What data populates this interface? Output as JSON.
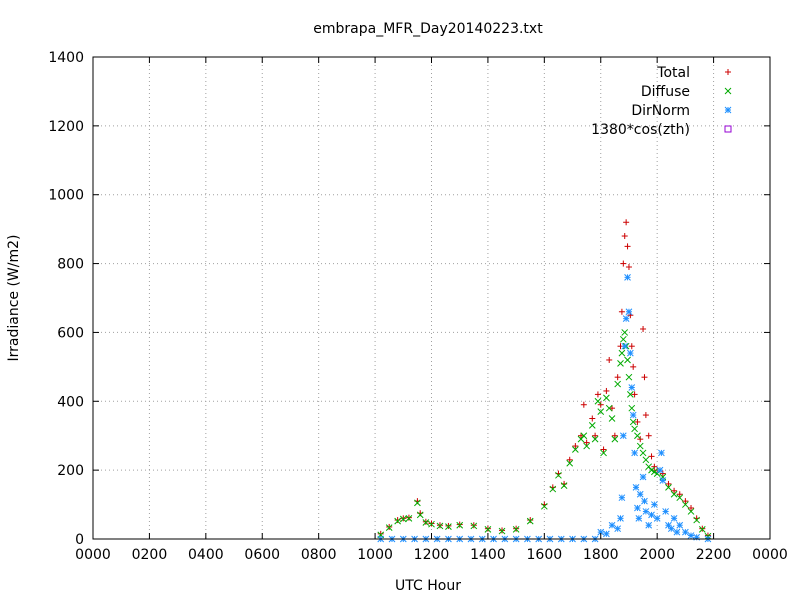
{
  "chart_data": {
    "type": "scatter",
    "title": "embrapa_MFR_Day20140223.txt",
    "xlabel": "UTC Hour",
    "ylabel": "Irradiance (W/m2)",
    "xlim": [
      0,
      24
    ],
    "ylim": [
      0,
      1400
    ],
    "grid": true,
    "legend_position": "top-right",
    "x_ticks": [
      {
        "value": 0,
        "label": "0000"
      },
      {
        "value": 2,
        "label": "0200"
      },
      {
        "value": 4,
        "label": "0400"
      },
      {
        "value": 6,
        "label": "0600"
      },
      {
        "value": 8,
        "label": "0800"
      },
      {
        "value": 10,
        "label": "1000"
      },
      {
        "value": 12,
        "label": "1200"
      },
      {
        "value": 14,
        "label": "1400"
      },
      {
        "value": 16,
        "label": "1600"
      },
      {
        "value": 18,
        "label": "1800"
      },
      {
        "value": 20,
        "label": "2000"
      },
      {
        "value": 22,
        "label": "2200"
      },
      {
        "value": 24,
        "label": "0000"
      }
    ],
    "y_ticks": [
      {
        "value": 0,
        "label": "0"
      },
      {
        "value": 200,
        "label": "200"
      },
      {
        "value": 400,
        "label": "400"
      },
      {
        "value": 600,
        "label": "600"
      },
      {
        "value": 800,
        "label": "800"
      },
      {
        "value": 1000,
        "label": "1000"
      },
      {
        "value": 1200,
        "label": "1200"
      },
      {
        "value": 1400,
        "label": "1400"
      }
    ],
    "series": [
      {
        "name": "Total",
        "marker": "plus",
        "color": "#cc0000",
        "points": [
          [
            10.2,
            15
          ],
          [
            10.5,
            35
          ],
          [
            10.8,
            55
          ],
          [
            11.0,
            60
          ],
          [
            11.2,
            62
          ],
          [
            11.5,
            110
          ],
          [
            11.6,
            75
          ],
          [
            11.8,
            50
          ],
          [
            12.0,
            45
          ],
          [
            12.3,
            40
          ],
          [
            12.6,
            38
          ],
          [
            13.0,
            42
          ],
          [
            13.5,
            40
          ],
          [
            14.0,
            30
          ],
          [
            14.5,
            25
          ],
          [
            15.0,
            30
          ],
          [
            15.5,
            55
          ],
          [
            16.0,
            100
          ],
          [
            16.3,
            150
          ],
          [
            16.5,
            190
          ],
          [
            16.7,
            160
          ],
          [
            16.9,
            230
          ],
          [
            17.1,
            270
          ],
          [
            17.3,
            300
          ],
          [
            17.4,
            390
          ],
          [
            17.5,
            280
          ],
          [
            17.7,
            350
          ],
          [
            17.8,
            300
          ],
          [
            17.9,
            420
          ],
          [
            18.0,
            390
          ],
          [
            18.1,
            260
          ],
          [
            18.2,
            430
          ],
          [
            18.3,
            520
          ],
          [
            18.4,
            380
          ],
          [
            18.5,
            300
          ],
          [
            18.6,
            470
          ],
          [
            18.7,
            560
          ],
          [
            18.75,
            660
          ],
          [
            18.8,
            800
          ],
          [
            18.85,
            880
          ],
          [
            18.9,
            920
          ],
          [
            18.95,
            850
          ],
          [
            19.0,
            790
          ],
          [
            19.05,
            650
          ],
          [
            19.1,
            560
          ],
          [
            19.15,
            500
          ],
          [
            19.2,
            420
          ],
          [
            19.3,
            340
          ],
          [
            19.4,
            290
          ],
          [
            19.5,
            610
          ],
          [
            19.55,
            470
          ],
          [
            19.6,
            360
          ],
          [
            19.7,
            300
          ],
          [
            19.8,
            240
          ],
          [
            19.9,
            210
          ],
          [
            20.0,
            200
          ],
          [
            20.2,
            190
          ],
          [
            20.4,
            160
          ],
          [
            20.6,
            140
          ],
          [
            20.8,
            130
          ],
          [
            21.0,
            110
          ],
          [
            21.2,
            90
          ],
          [
            21.4,
            60
          ],
          [
            21.6,
            30
          ],
          [
            21.8,
            10
          ]
        ]
      },
      {
        "name": "Diffuse",
        "marker": "cross",
        "color": "#00aa00",
        "points": [
          [
            10.2,
            12
          ],
          [
            10.5,
            33
          ],
          [
            10.8,
            52
          ],
          [
            11.0,
            58
          ],
          [
            11.2,
            60
          ],
          [
            11.5,
            105
          ],
          [
            11.6,
            70
          ],
          [
            11.8,
            48
          ],
          [
            12.0,
            43
          ],
          [
            12.3,
            38
          ],
          [
            12.6,
            36
          ],
          [
            13.0,
            40
          ],
          [
            13.5,
            38
          ],
          [
            14.0,
            28
          ],
          [
            14.5,
            23
          ],
          [
            15.0,
            28
          ],
          [
            15.5,
            52
          ],
          [
            16.0,
            95
          ],
          [
            16.3,
            145
          ],
          [
            16.5,
            185
          ],
          [
            16.7,
            155
          ],
          [
            16.9,
            220
          ],
          [
            17.1,
            260
          ],
          [
            17.3,
            290
          ],
          [
            17.4,
            300
          ],
          [
            17.5,
            270
          ],
          [
            17.7,
            330
          ],
          [
            17.8,
            290
          ],
          [
            17.9,
            400
          ],
          [
            18.0,
            370
          ],
          [
            18.1,
            250
          ],
          [
            18.2,
            410
          ],
          [
            18.3,
            380
          ],
          [
            18.4,
            350
          ],
          [
            18.5,
            290
          ],
          [
            18.6,
            450
          ],
          [
            18.7,
            510
          ],
          [
            18.75,
            540
          ],
          [
            18.8,
            580
          ],
          [
            18.85,
            600
          ],
          [
            18.9,
            560
          ],
          [
            18.95,
            520
          ],
          [
            19.0,
            470
          ],
          [
            19.05,
            420
          ],
          [
            19.1,
            380
          ],
          [
            19.15,
            340
          ],
          [
            19.2,
            320
          ],
          [
            19.3,
            300
          ],
          [
            19.4,
            270
          ],
          [
            19.5,
            250
          ],
          [
            19.6,
            230
          ],
          [
            19.7,
            210
          ],
          [
            19.8,
            200
          ],
          [
            19.9,
            195
          ],
          [
            20.0,
            190
          ],
          [
            20.2,
            180
          ],
          [
            20.4,
            150
          ],
          [
            20.6,
            130
          ],
          [
            20.8,
            120
          ],
          [
            21.0,
            100
          ],
          [
            21.2,
            80
          ],
          [
            21.4,
            55
          ],
          [
            21.6,
            28
          ],
          [
            21.8,
            8
          ]
        ]
      },
      {
        "name": "DirNorm",
        "marker": "star",
        "color": "#1e8fff",
        "points": [
          [
            10.2,
            0
          ],
          [
            10.6,
            0
          ],
          [
            11.0,
            0
          ],
          [
            11.4,
            0
          ],
          [
            11.8,
            0
          ],
          [
            12.2,
            0
          ],
          [
            12.6,
            0
          ],
          [
            13.0,
            0
          ],
          [
            13.4,
            0
          ],
          [
            13.8,
            0
          ],
          [
            14.2,
            0
          ],
          [
            14.6,
            0
          ],
          [
            15.0,
            0
          ],
          [
            15.4,
            0
          ],
          [
            15.8,
            0
          ],
          [
            16.2,
            0
          ],
          [
            16.6,
            0
          ],
          [
            17.0,
            0
          ],
          [
            17.4,
            0
          ],
          [
            17.8,
            0
          ],
          [
            18.0,
            20
          ],
          [
            18.2,
            15
          ],
          [
            18.4,
            40
          ],
          [
            18.6,
            30
          ],
          [
            18.7,
            60
          ],
          [
            18.75,
            120
          ],
          [
            18.8,
            300
          ],
          [
            18.85,
            560
          ],
          [
            18.9,
            640
          ],
          [
            18.95,
            760
          ],
          [
            19.0,
            660
          ],
          [
            19.05,
            540
          ],
          [
            19.1,
            440
          ],
          [
            19.15,
            360
          ],
          [
            19.2,
            250
          ],
          [
            19.25,
            150
          ],
          [
            19.3,
            90
          ],
          [
            19.35,
            60
          ],
          [
            19.4,
            130
          ],
          [
            19.5,
            180
          ],
          [
            19.55,
            110
          ],
          [
            19.6,
            80
          ],
          [
            19.7,
            40
          ],
          [
            19.8,
            70
          ],
          [
            19.9,
            100
          ],
          [
            20.0,
            60
          ],
          [
            20.1,
            200
          ],
          [
            20.15,
            250
          ],
          [
            20.2,
            170
          ],
          [
            20.3,
            80
          ],
          [
            20.4,
            40
          ],
          [
            20.5,
            30
          ],
          [
            20.6,
            60
          ],
          [
            20.7,
            20
          ],
          [
            20.8,
            40
          ],
          [
            21.0,
            20
          ],
          [
            21.2,
            10
          ],
          [
            21.4,
            5
          ],
          [
            21.8,
            0
          ]
        ]
      },
      {
        "name": "1380*cos(zth)",
        "marker": "square",
        "color": "#9400d3",
        "points": []
      }
    ]
  }
}
